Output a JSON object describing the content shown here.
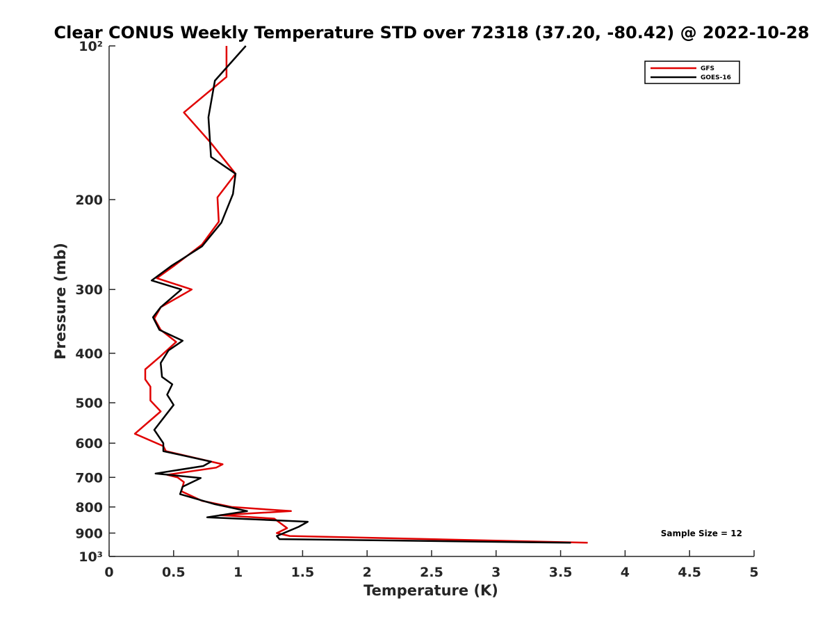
{
  "chart_data": {
    "type": "line",
    "title": "Clear CONUS Weekly Temperature STD over 72318 (37.20, -80.42) @ 2022-10-28",
    "xlabel": "Temperature (K)",
    "ylabel": "Pressure (mb)",
    "xlim": [
      0,
      5
    ],
    "ylim": [
      100,
      1000
    ],
    "y_scale": "log",
    "y_reversed": true,
    "grid": false,
    "legend_position": "top-right",
    "x_ticks": [
      0,
      0.5,
      1,
      1.5,
      2,
      2.5,
      3,
      3.5,
      4,
      4.5,
      5
    ],
    "x_tick_labels": [
      "0",
      "0.5",
      "1",
      "1.5",
      "2",
      "2.5",
      "3",
      "3.5",
      "4",
      "4.5",
      "5"
    ],
    "y_ticks": [
      100,
      200,
      300,
      400,
      500,
      600,
      700,
      800,
      900,
      1000
    ],
    "y_tick_labels": [
      "10²",
      "200",
      "300",
      "400",
      "500",
      "600",
      "700",
      "800",
      "900",
      "10³"
    ],
    "series": [
      {
        "name": "GFS",
        "color": "#e00000",
        "points": [
          [
            0.91,
            100
          ],
          [
            0.91,
            115
          ],
          [
            0.58,
            135
          ],
          [
            0.79,
            155
          ],
          [
            0.98,
            178
          ],
          [
            0.84,
            198
          ],
          [
            0.85,
            221
          ],
          [
            0.72,
            245
          ],
          [
            0.5,
            270
          ],
          [
            0.37,
            285
          ],
          [
            0.64,
            300
          ],
          [
            0.4,
            325
          ],
          [
            0.35,
            342
          ],
          [
            0.4,
            360
          ],
          [
            0.52,
            380
          ],
          [
            0.4,
            405
          ],
          [
            0.28,
            430
          ],
          [
            0.28,
            450
          ],
          [
            0.32,
            465
          ],
          [
            0.32,
            495
          ],
          [
            0.4,
            520
          ],
          [
            0.2,
            575
          ],
          [
            0.42,
            608
          ],
          [
            0.44,
            622
          ],
          [
            0.88,
            660
          ],
          [
            0.83,
            670
          ],
          [
            0.45,
            692
          ],
          [
            0.53,
            700
          ],
          [
            0.58,
            715
          ],
          [
            0.56,
            745
          ],
          [
            0.72,
            778
          ],
          [
            0.95,
            800
          ],
          [
            1.41,
            815
          ],
          [
            0.86,
            830
          ],
          [
            1.28,
            843
          ],
          [
            1.38,
            880
          ],
          [
            1.3,
            900
          ],
          [
            1.4,
            912
          ],
          [
            3.71,
            940
          ]
        ]
      },
      {
        "name": "GOES-16",
        "color": "#000000",
        "points": [
          [
            1.06,
            100
          ],
          [
            0.82,
            117
          ],
          [
            0.77,
            138
          ],
          [
            0.79,
            165
          ],
          [
            0.98,
            178
          ],
          [
            0.96,
            195
          ],
          [
            0.87,
            222
          ],
          [
            0.72,
            247
          ],
          [
            0.48,
            270
          ],
          [
            0.33,
            288
          ],
          [
            0.56,
            300
          ],
          [
            0.4,
            325
          ],
          [
            0.34,
            340
          ],
          [
            0.39,
            360
          ],
          [
            0.57,
            378
          ],
          [
            0.46,
            395
          ],
          [
            0.4,
            418
          ],
          [
            0.41,
            445
          ],
          [
            0.49,
            460
          ],
          [
            0.45,
            482
          ],
          [
            0.5,
            505
          ],
          [
            0.35,
            565
          ],
          [
            0.42,
            600
          ],
          [
            0.42,
            622
          ],
          [
            0.79,
            652
          ],
          [
            0.73,
            665
          ],
          [
            0.36,
            688
          ],
          [
            0.71,
            702
          ],
          [
            0.57,
            730
          ],
          [
            0.55,
            755
          ],
          [
            0.82,
            790
          ],
          [
            1.07,
            815
          ],
          [
            0.76,
            838
          ],
          [
            1.54,
            855
          ],
          [
            1.47,
            875
          ],
          [
            1.3,
            912
          ],
          [
            1.32,
            925
          ],
          [
            3.58,
            940
          ]
        ]
      }
    ],
    "annotations": [
      "Sample Size = 12"
    ]
  }
}
